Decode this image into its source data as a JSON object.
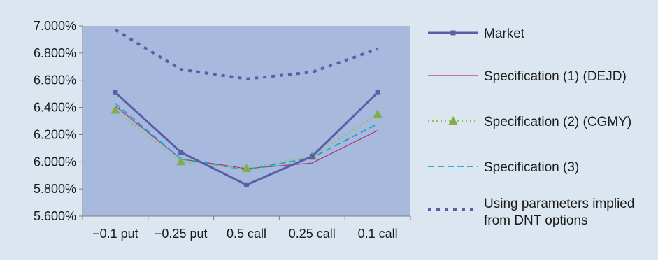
{
  "chart_data": {
    "type": "line",
    "categories": [
      "−0.1 put",
      "−0.25 put",
      "0.5 call",
      "0.25 call",
      "0.1 call"
    ],
    "y_ticks": [
      "5.600%",
      "5.800%",
      "6.000%",
      "6.200%",
      "6.400%",
      "6.600%",
      "6.800%",
      "7.000%"
    ],
    "ylim": [
      5.6,
      7.0
    ],
    "grid": false,
    "legend_position": "right",
    "colors": {
      "background": "#dce6f1",
      "plot_area": "#a7b9dc",
      "market": "#5a5ea8",
      "spec1": "#b0337a",
      "spec2": "#8fc34f",
      "spec2_marker": "#7fae4a",
      "spec3": "#16a8c6",
      "dnt": "#5a5ea8"
    },
    "series": [
      {
        "key": "market",
        "name": "Market",
        "style": "solid-square",
        "values": [
          6.51,
          6.07,
          5.83,
          6.04,
          6.51
        ]
      },
      {
        "key": "spec1",
        "name": "Specification (1) (DEJD)",
        "style": "thin-solid",
        "values": [
          6.41,
          6.02,
          5.95,
          5.99,
          6.23
        ]
      },
      {
        "key": "spec2",
        "name": "Specification (2) (CGMY)",
        "style": "dotted-triangle",
        "values": [
          6.38,
          6.0,
          5.95,
          6.04,
          6.35
        ]
      },
      {
        "key": "spec3",
        "name": "Specification (3)",
        "style": "dashed",
        "values": [
          6.43,
          6.02,
          5.94,
          6.03,
          6.28
        ]
      },
      {
        "key": "dnt",
        "name": "Using parameters implied\nfrom DNT options",
        "style": "heavy-dashed",
        "values": [
          6.97,
          6.68,
          6.61,
          6.66,
          6.83
        ]
      }
    ]
  }
}
